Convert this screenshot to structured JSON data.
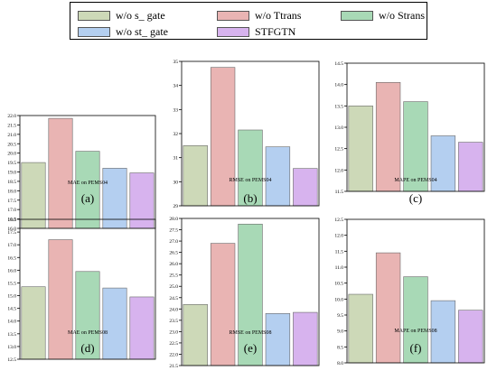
{
  "legend": [
    {
      "name": "w/o s_ gate",
      "color": "#cdd9b8"
    },
    {
      "name": "w/o Ttrans",
      "color": "#e9b4b3"
    },
    {
      "name": "w/o Strans",
      "color": "#a8d9b6"
    },
    {
      "name": "w/o st_ gate",
      "color": "#b4cff0"
    },
    {
      "name": "STFGTN",
      "color": "#d7b3ee"
    }
  ],
  "chart_data": [
    {
      "type": "bar",
      "panel_label": "(a)",
      "xlabel": "MAE on PEMS04",
      "categories": [
        "w/o s_ gate",
        "w/o Ttrans",
        "w/o Strans",
        "w/o st_ gate",
        "STFGTN"
      ],
      "values": [
        19.5,
        21.85,
        20.1,
        19.2,
        18.95
      ],
      "ylim": [
        16.0,
        22.0
      ],
      "yticks": [
        "16.0",
        "16.5",
        "17.0",
        "17.5",
        "18.0",
        "18.5",
        "19.0",
        "19.5",
        "20.0",
        "20.5",
        "21.0",
        "21.5",
        "22.0"
      ]
    },
    {
      "type": "bar",
      "panel_label": "(b)",
      "xlabel": "RMSE on PEMS04",
      "categories": [
        "w/o s_ gate",
        "w/o Ttrans",
        "w/o Strans",
        "w/o st_ gate",
        "STFGTN"
      ],
      "values": [
        31.5,
        34.75,
        32.15,
        31.45,
        30.55
      ],
      "ylim": [
        29,
        35
      ],
      "yticks": [
        "29",
        "30",
        "31",
        "32",
        "33",
        "34",
        "35"
      ]
    },
    {
      "type": "bar",
      "panel_label": "(c)",
      "xlabel": "MAPE on PEMS04",
      "categories": [
        "w/o s_ gate",
        "w/o Ttrans",
        "w/o Strans",
        "w/o st_ gate",
        "STFGTN"
      ],
      "values": [
        13.5,
        14.05,
        13.6,
        12.8,
        12.65
      ],
      "ylim": [
        11.5,
        14.5
      ],
      "yticks": [
        "11.5",
        "12.0",
        "12.5",
        "13.0",
        "13.5",
        "14.0",
        "14.5"
      ]
    },
    {
      "type": "bar",
      "panel_label": "(d)",
      "xlabel": "MAE on PEMS08",
      "categories": [
        "w/o s_ gate",
        "w/o Ttrans",
        "w/o Strans",
        "w/o st_ gate",
        "STFGTN"
      ],
      "values": [
        15.35,
        17.2,
        15.95,
        15.3,
        14.95
      ],
      "ylim": [
        12.5,
        18.0
      ],
      "yticks": [
        "12.5",
        "13.0",
        "13.5",
        "14.0",
        "14.5",
        "15.0",
        "15.5",
        "16.0",
        "16.5",
        "17.0",
        "17.5",
        "18.0"
      ]
    },
    {
      "type": "bar",
      "panel_label": "(e)",
      "xlabel": "RMSE on PEMS08",
      "categories": [
        "w/o s_ gate",
        "w/o Ttrans",
        "w/o Strans",
        "w/o st_ gate",
        "STFGTN"
      ],
      "values": [
        24.2,
        26.9,
        27.75,
        23.8,
        23.85
      ],
      "ylim": [
        21.5,
        28.0
      ],
      "yticks": [
        "21.5",
        "22.0",
        "22.5",
        "23.0",
        "23.5",
        "24.0",
        "24.5",
        "25.0",
        "25.5",
        "26.0",
        "26.5",
        "27.0",
        "27.5",
        "28.0"
      ]
    },
    {
      "type": "bar",
      "panel_label": "(f)",
      "xlabel": "MAPE on PEMS08",
      "categories": [
        "w/o s_ gate",
        "w/o Ttrans",
        "w/o Strans",
        "w/o st_ gate",
        "STFGTN"
      ],
      "values": [
        10.15,
        11.45,
        10.7,
        9.95,
        9.65
      ],
      "ylim": [
        8.0,
        12.5
      ],
      "yticks": [
        "8.0",
        "8.5",
        "9.0",
        "9.5",
        "10.0",
        "10.5",
        "11.0",
        "11.5",
        "12.0",
        "12.5"
      ]
    }
  ]
}
